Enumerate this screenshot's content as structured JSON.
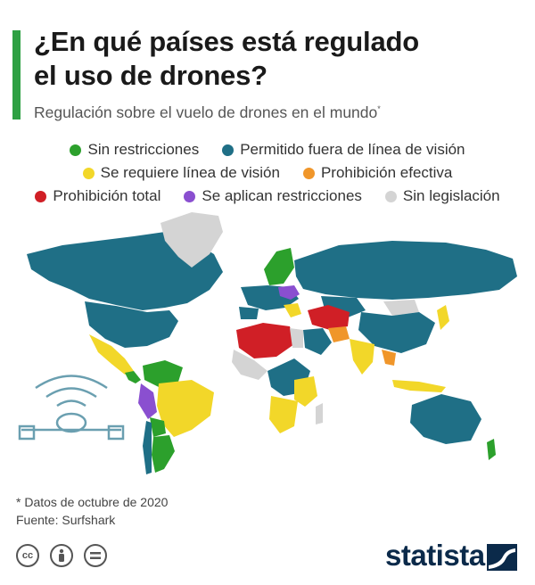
{
  "header": {
    "title_line1": "¿En qué países está regulado",
    "title_line2": "el uso de drones?",
    "subtitle": "Regulación sobre el vuelo de drones en el mundo",
    "subtitle_mark": "*",
    "accent_color": "#2ea043"
  },
  "legend": [
    {
      "label": "Sin restricciones",
      "color": "#2ca02c"
    },
    {
      "label": "Permitido fuera de línea de visión",
      "color": "#1f6f86"
    },
    {
      "label": "Se requiere línea de visión",
      "color": "#f2d729"
    },
    {
      "label": "Prohibición efectiva",
      "color": "#f0962a"
    },
    {
      "label": "Prohibición total",
      "color": "#d01f26"
    },
    {
      "label": "Se aplican restricciones",
      "color": "#8a4fd0"
    },
    {
      "label": "Sin legislación",
      "color": "#d4d4d4"
    }
  ],
  "notes": {
    "footnote": "* Datos de octubre de 2020",
    "source": "Fuente: Surfshark"
  },
  "footer": {
    "license_icons": [
      "cc-icon",
      "by-icon",
      "nd-icon"
    ],
    "cc_text": "cc",
    "brand": "statista",
    "brand_color": "#0b2a4a"
  }
}
